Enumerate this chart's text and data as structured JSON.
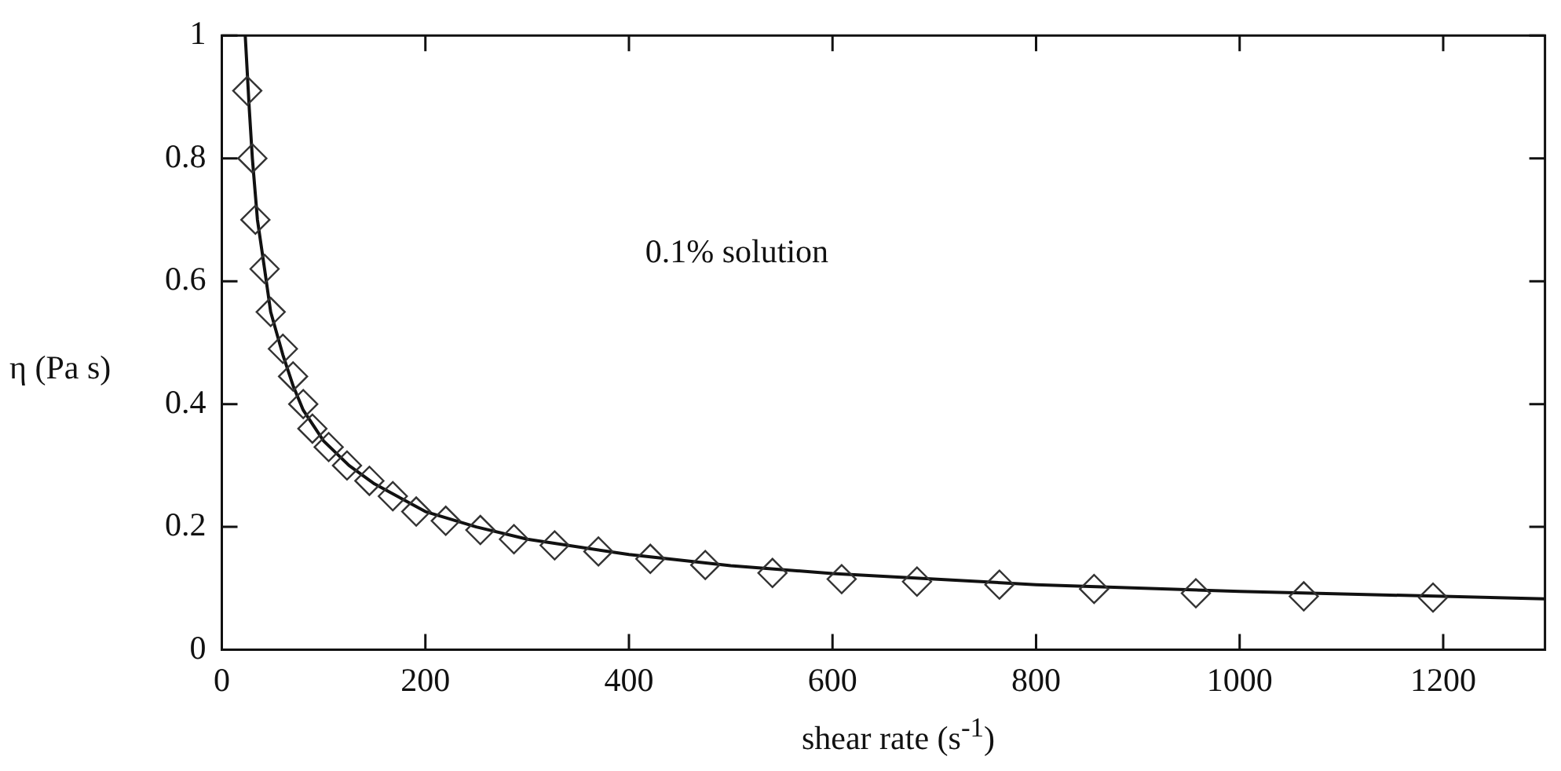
{
  "chart_data": {
    "type": "scatter",
    "xlabel": "shear rate (s$^{-1}$)",
    "ylabel": "η (Pa s)",
    "annotations": [
      "0.1% solution"
    ],
    "xlim": [
      0,
      1300
    ],
    "xticks": [
      0,
      200,
      400,
      600,
      800,
      1000,
      1200
    ],
    "ylim": [
      0,
      1
    ],
    "yticks": [
      0,
      0.2,
      0.4,
      0.6,
      0.8,
      1
    ],
    "grid": false,
    "legend": false,
    "series": [
      {
        "type": "scatter",
        "marker": "diamond",
        "color": "#333333",
        "x": [
          25,
          30,
          33,
          42,
          48,
          60,
          70,
          80,
          89,
          105,
          123,
          145,
          168,
          191,
          220,
          254,
          287,
          327,
          370,
          421,
          475,
          541,
          609,
          683,
          764,
          857,
          957,
          1063,
          1190
        ],
        "values": [
          0.91,
          0.8,
          0.7,
          0.62,
          0.55,
          0.49,
          0.445,
          0.4,
          0.36,
          0.33,
          0.3,
          0.275,
          0.25,
          0.225,
          0.21,
          0.195,
          0.18,
          0.17,
          0.16,
          0.148,
          0.138,
          0.125,
          0.115,
          0.111,
          0.106,
          0.099,
          0.092,
          0.087,
          0.085
        ]
      },
      {
        "type": "line",
        "marker": "none",
        "line_style": "solid",
        "color": "#111111",
        "x": [
          23,
          27,
          30,
          35,
          42,
          48,
          60,
          70,
          80,
          100,
          125,
          150,
          200,
          250,
          300,
          400,
          500,
          600,
          800,
          1000,
          1300
        ],
        "values": [
          1,
          0.88,
          0.8,
          0.7,
          0.62,
          0.55,
          0.48,
          0.43,
          0.39,
          0.34,
          0.3,
          0.27,
          0.225,
          0.2,
          0.18,
          0.155,
          0.137,
          0.124,
          0.106,
          0.095,
          0.083
        ]
      }
    ]
  }
}
